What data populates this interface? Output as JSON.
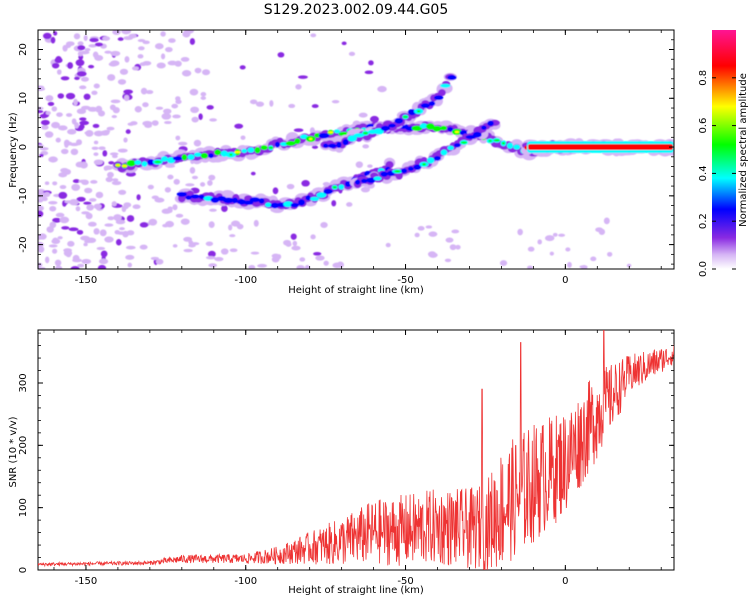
{
  "title": "S129.2023.002.09.44.G05",
  "colors": {
    "snr_line": "#ee3333",
    "colormap": [
      "#ffffff",
      "#d6b5f5",
      "#8a2be2",
      "#0000ff",
      "#00ffff",
      "#00ff00",
      "#ffff00",
      "#ff0000",
      "#ff1493"
    ]
  },
  "chart_data": [
    {
      "type": "heatmap",
      "name": "spectrogram",
      "xlabel": "Height of straight line (km)",
      "ylabel": "Frequency (Hz)",
      "xlim": [
        -165,
        34
      ],
      "ylim": [
        -25,
        24
      ],
      "xticks": [
        -150,
        -100,
        -50,
        0
      ],
      "yticks": [
        -20,
        -10,
        0,
        10,
        20
      ],
      "colorbar": {
        "label": "Normalized spectral amplitude",
        "range": [
          0,
          1
        ],
        "ticks": [
          0.0,
          0.2,
          0.4,
          0.6,
          0.8
        ]
      },
      "features": [
        {
          "name": "main-trace",
          "x": [
            -140,
            -120,
            -100,
            -80,
            -60,
            -40,
            -25,
            -12,
            0,
            15,
            34
          ],
          "freq": [
            -4,
            -2,
            -1,
            2,
            4,
            4,
            2,
            -1,
            0,
            0,
            0
          ]
        },
        {
          "name": "upper-branch",
          "x": [
            -75,
            -60,
            -50,
            -40,
            -35
          ],
          "freq": [
            0,
            3,
            6,
            10,
            15
          ]
        },
        {
          "name": "lower-branch",
          "x": [
            -120,
            -100,
            -85,
            -70,
            -55
          ],
          "freq": [
            -10,
            -11,
            -12,
            -8,
            -4
          ]
        },
        {
          "name": "middle-branch",
          "x": [
            -65,
            -50,
            -40,
            -30,
            -22
          ],
          "freq": [
            -7,
            -5,
            -2,
            2,
            5
          ]
        },
        {
          "name": "strong-tone",
          "x": [
            -12,
            0,
            34
          ],
          "freq": [
            0,
            0,
            0
          ]
        }
      ]
    },
    {
      "type": "line",
      "name": "snr",
      "xlabel": "Height of straight line (km)",
      "ylabel": "SNR (10 * v/v)",
      "xlim": [
        -165,
        34
      ],
      "ylim": [
        0,
        385
      ],
      "xticks": [
        -150,
        -100,
        -50,
        0
      ],
      "yticks": [
        0,
        100,
        200,
        300
      ],
      "envelope": {
        "x": [
          -165,
          -130,
          -120,
          -100,
          -90,
          -80,
          -70,
          -60,
          -50,
          -40,
          -30,
          -25,
          -20,
          -10,
          0,
          10,
          20,
          34
        ],
        "base": [
          8,
          10,
          15,
          15,
          18,
          25,
          30,
          40,
          40,
          45,
          40,
          40,
          60,
          100,
          140,
          220,
          300,
          340
        ],
        "amp": [
          4,
          5,
          10,
          12,
          22,
          40,
          60,
          80,
          90,
          95,
          100,
          110,
          150,
          150,
          130,
          110,
          50,
          25
        ]
      },
      "peaks": [
        {
          "x": -26,
          "y": 290
        },
        {
          "x": -14,
          "y": 365
        },
        {
          "x": 12,
          "y": 385
        }
      ]
    }
  ]
}
